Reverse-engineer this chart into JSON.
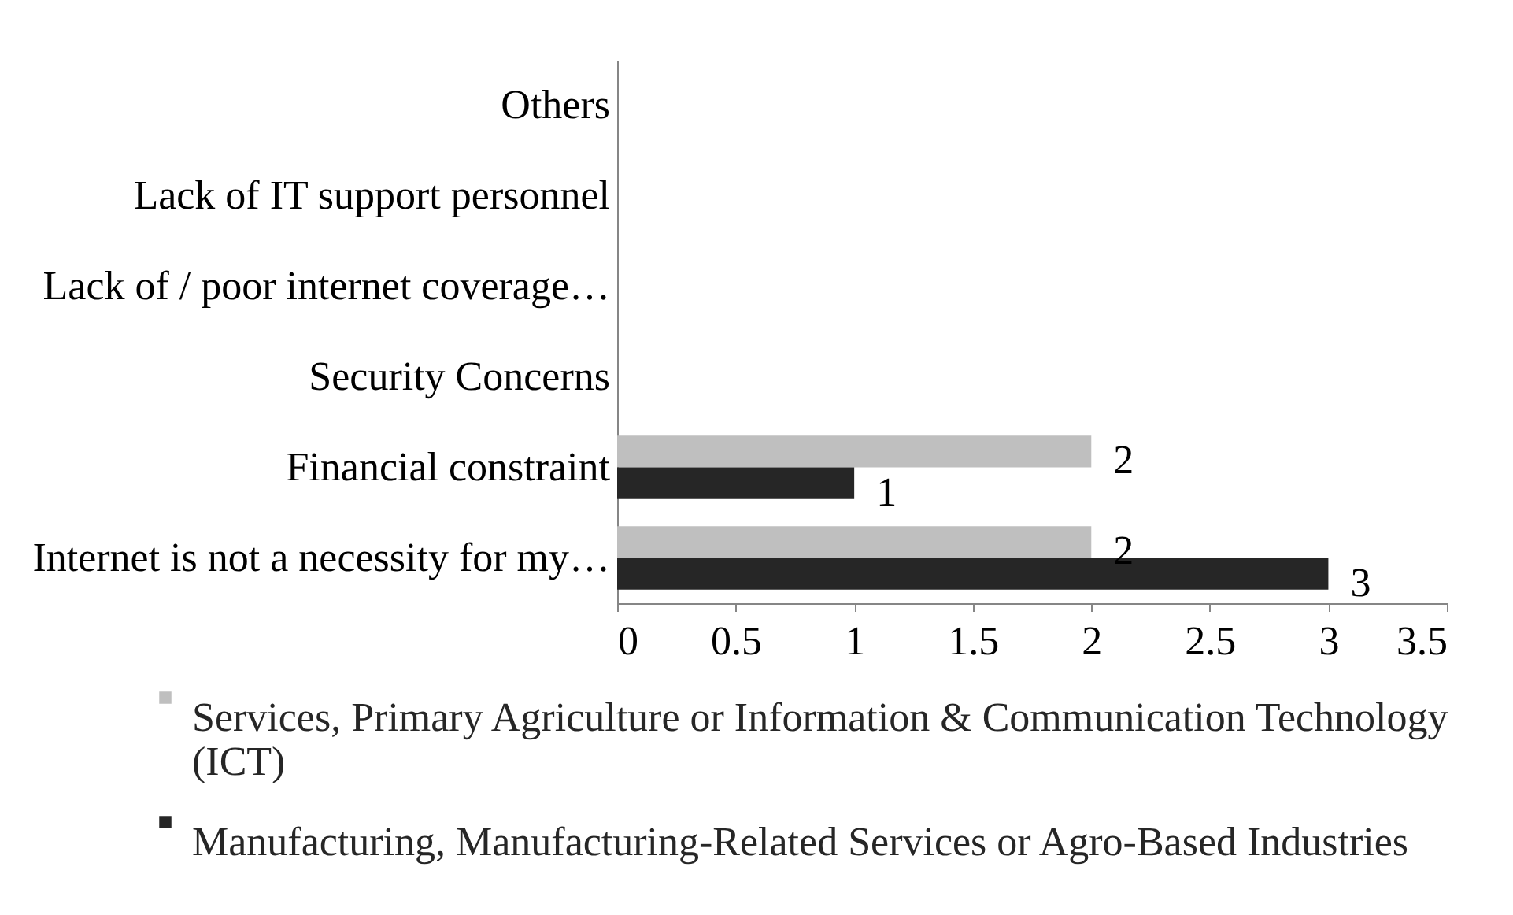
{
  "chart_data": {
    "type": "bar",
    "orientation": "horizontal",
    "categories": [
      "Others",
      "Lack of IT support personnel",
      "Lack of / poor internet coverage…",
      "Security Concerns",
      "Financial constraint",
      "Internet is not a necessity for my…"
    ],
    "series": [
      {
        "name": "Services, Primary Agriculture or Information  & Communication Technology (ICT)",
        "color": "#bfbfbf",
        "values": [
          0,
          0,
          0,
          0,
          2,
          2
        ],
        "value_labels": [
          null,
          null,
          null,
          null,
          "2",
          "2"
        ]
      },
      {
        "name": "Manufacturing, Manufacturing-Related Services or Agro-Based Industries",
        "color": "#262626",
        "values": [
          0,
          0,
          0,
          0,
          1,
          3
        ],
        "value_labels": [
          null,
          null,
          null,
          null,
          "1",
          "3"
        ]
      }
    ],
    "xlim": [
      0,
      3.5
    ],
    "xticks": [
      0,
      0.5,
      1,
      1.5,
      2,
      2.5,
      3,
      3.5
    ],
    "grid": false,
    "legend": "bottom"
  }
}
